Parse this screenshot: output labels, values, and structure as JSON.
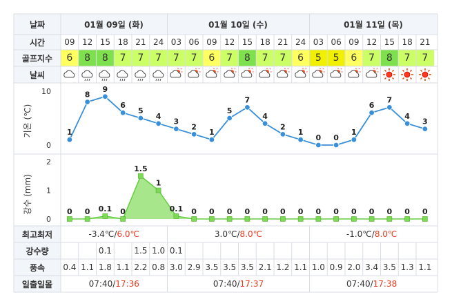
{
  "labels": {
    "date": "날짜",
    "time": "시간",
    "golf_index": "골프지수",
    "weather": "날씨",
    "temp_axis": "기온 (℃)",
    "rain_axis": "강수 (mm)",
    "min_max": "최고최저",
    "rain_amount": "강수량",
    "wind": "풍속",
    "sun": "일출일몰"
  },
  "days": [
    {
      "label": "01월 09일 (화)",
      "min_temp": "-3.4℃",
      "max_temp": "6.0℃",
      "sunrise": "07:40",
      "sunset": "17:36"
    },
    {
      "label": "01월 10일 (수)",
      "min_temp": "3.0℃",
      "max_temp": "8.0℃",
      "sunrise": "07:40",
      "sunset": "17:37"
    },
    {
      "label": "01월 11일 (목)",
      "min_temp": "-1.0℃",
      "max_temp": "8.0℃",
      "sunrise": "07:40",
      "sunset": "17:38"
    }
  ],
  "times": [
    "09",
    "12",
    "15",
    "18",
    "21",
    "24",
    "03",
    "06",
    "09",
    "12",
    "15",
    "18",
    "21",
    "24",
    "03",
    "06",
    "09",
    "12",
    "15",
    "18",
    "21"
  ],
  "golf_index": [
    6,
    8,
    8,
    7,
    7,
    7,
    7,
    7,
    6,
    7,
    8,
    7,
    7,
    6,
    5,
    5,
    6,
    7,
    8,
    7,
    7
  ],
  "golf_colors": {
    "5": "#f0f000",
    "6": "#ffff60",
    "7": "#ccff66",
    "8": "#7ee04c"
  },
  "weather_icons": [
    "cloud-icon",
    "cloud-rain-icon",
    "cloud-rain-icon",
    "cloud-rain-icon",
    "cloud-rain-icon",
    "cloud-rain-icon",
    "cloud-sun-night-icon",
    "cloud-sun-night-icon",
    "cloud-sun-icon",
    "cloud-sun-icon",
    "cloud-sun-icon",
    "cloud-sun-icon",
    "cloud-sun-icon",
    "cloud-sun-icon",
    "cloud-sun-icon",
    "cloud-sun-icon",
    "cloud-sun-icon",
    "cloud-sun-icon",
    "sun-icon",
    "sun-icon",
    "sun-icon"
  ],
  "rain_cells": [
    "",
    "",
    "0.1",
    "",
    "1.5",
    "1.0",
    "0.1",
    "",
    "",
    "",
    "",
    "",
    "",
    "",
    "",
    "",
    "",
    "",
    "",
    "",
    ""
  ],
  "wind": [
    "0.4",
    "1.1",
    "1.8",
    "1.1",
    "2.2",
    "0.8",
    "3.0",
    "2.9",
    "3.5",
    "3.5",
    "3.5",
    "2.1",
    "1.2",
    "1.1",
    "1.0",
    "0.9",
    "2.0",
    "3.4",
    "3.5",
    "1.3",
    "1.1"
  ],
  "chart_data": [
    {
      "type": "line",
      "x": [
        "09",
        "12",
        "15",
        "18",
        "21",
        "24",
        "03",
        "06",
        "09",
        "12",
        "15",
        "18",
        "21",
        "24",
        "03",
        "06",
        "09",
        "12",
        "15",
        "18",
        "21"
      ],
      "series": [
        {
          "values": [
            1,
            8,
            9,
            6,
            5,
            4,
            3,
            2,
            1,
            5,
            7,
            4,
            2,
            1,
            0,
            0,
            1,
            6,
            7,
            4,
            3
          ]
        }
      ],
      "ylabel": "기온 (℃)",
      "yticks": [
        "10",
        "0"
      ],
      "ylim": [
        0,
        10
      ],
      "color": "#3a8fd9"
    },
    {
      "type": "area",
      "x": [
        "09",
        "12",
        "15",
        "18",
        "21",
        "24",
        "03",
        "06",
        "09",
        "12",
        "15",
        "18",
        "21",
        "24",
        "03",
        "06",
        "09",
        "12",
        "15",
        "18",
        "21"
      ],
      "series": [
        {
          "values": [
            0,
            0,
            0.1,
            0,
            1.5,
            1,
            0.1,
            0,
            0,
            0,
            0,
            0,
            0,
            0,
            0,
            0,
            0,
            0,
            0,
            0,
            0
          ]
        }
      ],
      "ylabel": "강수 (mm)",
      "yticks": [
        "2",
        "1",
        "0"
      ],
      "ylim": [
        0,
        2
      ],
      "color": "#66cc44"
    }
  ]
}
